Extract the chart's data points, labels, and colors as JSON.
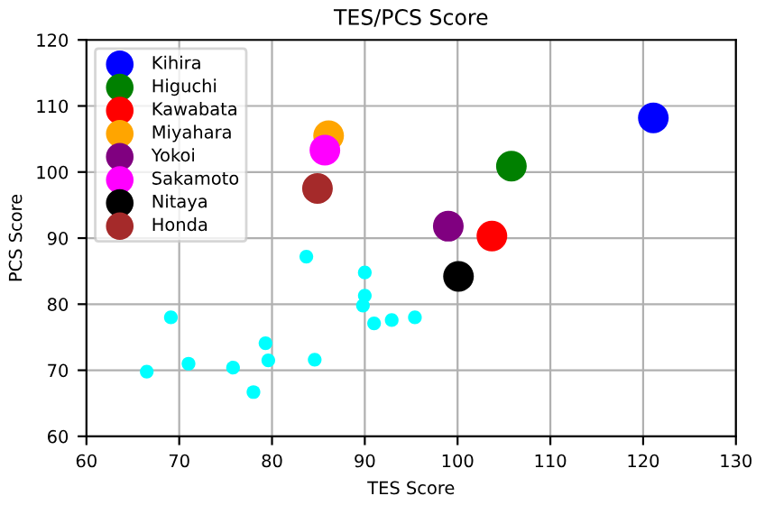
{
  "chart_data": {
    "type": "scatter",
    "title": "TES/PCS Score",
    "xlabel": "TES Score",
    "ylabel": "PCS Score",
    "xlim": [
      60,
      130
    ],
    "xticks": [
      60,
      70,
      80,
      90,
      100,
      110,
      120,
      130
    ],
    "ylim": [
      60,
      120
    ],
    "yticks": [
      60,
      70,
      80,
      90,
      100,
      110,
      120
    ],
    "grid": true,
    "legend": "top left",
    "marker": "circle",
    "series": [
      {
        "color": "#00ffff",
        "x": [
          83.7,
          90.0,
          90.0,
          89.8,
          91.0,
          92.9,
          95.4,
          69.1,
          66.5,
          71.0,
          75.8,
          78.0,
          79.3,
          79.6,
          84.6
        ],
        "values": [
          87.2,
          84.8,
          81.3,
          79.8,
          77.1,
          77.6,
          78.0,
          78.0,
          69.8,
          71.0,
          70.4,
          66.7,
          74.1,
          71.5,
          71.6
        ]
      },
      {
        "name": "Kihira",
        "color": "#0000ff",
        "x": [
          121.1
        ],
        "values": [
          108.2
        ]
      },
      {
        "name": "Higuchi",
        "color": "#008000",
        "x": [
          105.8
        ],
        "values": [
          100.9
        ]
      },
      {
        "name": "Kawabata",
        "color": "#ff0000",
        "x": [
          103.7
        ],
        "values": [
          90.3
        ]
      },
      {
        "name": "Miyahara",
        "color": "#ffa500",
        "x": [
          86.1
        ],
        "values": [
          105.5
        ]
      },
      {
        "name": "Yokoi",
        "color": "#800080",
        "x": [
          99.0
        ],
        "values": [
          91.8
        ]
      },
      {
        "name": "Sakamoto",
        "color": "#ff00ff",
        "x": [
          85.7
        ],
        "values": [
          103.3
        ]
      },
      {
        "name": "Nitaya",
        "color": "#000000",
        "x": [
          100.1
        ],
        "values": [
          84.2
        ]
      },
      {
        "name": "Honda",
        "color": "#a52a2a",
        "x": [
          84.9
        ],
        "values": [
          97.5
        ]
      }
    ]
  }
}
